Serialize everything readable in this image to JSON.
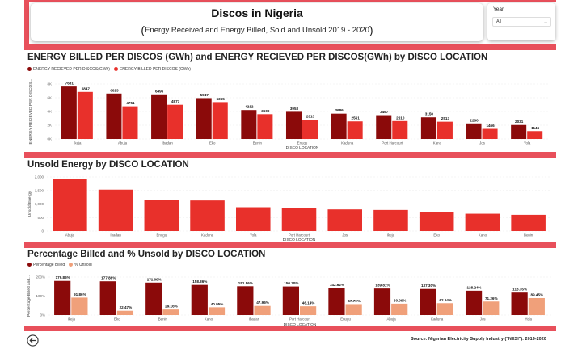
{
  "header": {
    "title": "Discos in Nigeria",
    "subtitle": "Energy Received  and Energy Billed, Sold and Unsold 2019 - 2020"
  },
  "slicer": {
    "label": "Year",
    "value": "All"
  },
  "source_text": "Source: Nigerian Electricity Supply Industry (\"NESI\"): 2019-2020",
  "colors": {
    "dark": "#8b0a0a",
    "bright": "#e8302b",
    "salmon": "#f0a07a",
    "strip": "#e8505b"
  },
  "chart_data": [
    {
      "type": "bar",
      "title": "ENERGY BILLED PER DISCOS (GWh) and ENERGY RECIEVED PER DISCOS(GWh) by DISCO LOCATION",
      "xlabel": "DISCO LOCATION",
      "ylabel": "ENERGY RECIEVED PER DISCOS...",
      "ylim": [
        0,
        8000
      ],
      "yticks": [
        "0K",
        "2K",
        "4K",
        "6K",
        "8K"
      ],
      "categories": [
        "Ikeja",
        "Abuja",
        "Ibadan",
        "Eko",
        "Benin",
        "Enugu",
        "Kaduna",
        "Port Harcourt",
        "Kano",
        "Jos",
        "Yola"
      ],
      "series": [
        {
          "name": "ENERGY RECIEVED PER DISCOS(GWh)",
          "values": [
            7631,
            6613,
            6496,
            5947,
            4212,
            3953,
            3686,
            3467,
            3150,
            2260,
            2031
          ]
        },
        {
          "name": "ENERGY BILLED PER DISCOS (GWh)",
          "values": [
            6847,
            4751,
            4977,
            5365,
            3609,
            2813,
            2561,
            2610,
            2513,
            1466,
            1146
          ]
        }
      ]
    },
    {
      "type": "bar",
      "title": "Unsold Energy by DISCO LOCATION",
      "xlabel": "DISCO LOCATION",
      "ylabel": "Unsold Energy",
      "ylim": [
        0,
        2000
      ],
      "yticks": [
        "0",
        "500",
        "1,000",
        "1,500",
        "2,000"
      ],
      "categories": [
        "Abuja",
        "Ibadan",
        "Enugu",
        "Kaduna",
        "Yola",
        "Port Harcourt",
        "Jos",
        "Ikeja",
        "Eko",
        "Kano",
        "Benin"
      ],
      "series": [
        {
          "name": "Unsold Energy",
          "values": [
            1930,
            1530,
            1160,
            1130,
            880,
            840,
            800,
            780,
            690,
            640,
            600
          ]
        }
      ]
    },
    {
      "type": "bar",
      "title": "Percentage Billed and % Unsold by DISCO LOCATION",
      "xlabel": "DISCO LOCATION",
      "ylabel": "Percentage Billed and...",
      "ylim": [
        0,
        200
      ],
      "yticks": [
        "0%",
        "100%",
        "200%"
      ],
      "categories": [
        "Ikeja",
        "Eko",
        "Benin",
        "Kano",
        "Ibadan",
        "Port Harcourt",
        "Enugu",
        "Abuja",
        "Kaduna",
        "Jos",
        "Yola"
      ],
      "series": [
        {
          "name": "Percentage Billed",
          "values": [
            179.86,
            177.86,
            171.09,
            158.86,
            151.86,
            150.7,
            142.62,
            139.81,
            137.3,
            128.24,
            118.35
          ]
        },
        {
          "name": "% Unsold",
          "values": [
            91.86,
            22.47,
            29.16,
            40.95,
            47.96,
            46.14,
            57.7,
            60.09,
            62.64,
            71.26,
            89.45
          ]
        }
      ]
    }
  ]
}
